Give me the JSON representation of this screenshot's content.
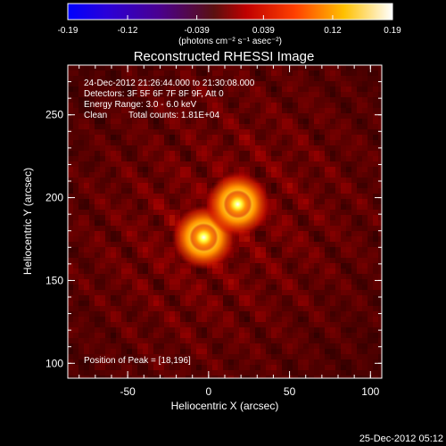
{
  "colorbar": {
    "ticks": [
      "-0.19",
      "-0.12",
      "-0.039",
      "0.039",
      "0.12",
      "0.19"
    ],
    "unit_label": "(photons cm⁻² s⁻¹ asec⁻²)",
    "range": [
      -0.19,
      0.19
    ]
  },
  "chart_data": {
    "type": "heatmap",
    "title": "Reconstructed RHESSI Image",
    "xlabel": "Heliocentric X (arcsec)",
    "ylabel": "Heliocentric Y (arcsec)",
    "xlim": [
      -87,
      107
    ],
    "ylim": [
      91,
      280
    ],
    "xticks": [
      "-50",
      "0",
      "50",
      "100"
    ],
    "yticks": [
      "100",
      "150",
      "200",
      "250"
    ],
    "sources": [
      {
        "x": -3,
        "y": 176,
        "peak": 0.19
      },
      {
        "x": 18,
        "y": 196,
        "peak": 0.19
      }
    ],
    "annotations": {
      "time_range": "24-Dec-2012 21:26:44.000 to 21:30:08.000",
      "detectors": "Detectors: 3F 5F 6F 7F 8F 9F, Att 0",
      "energy": "Energy Range: 3.0 - 6.0 keV",
      "method": "Clean",
      "counts": "Total counts: 1.81E+04",
      "peak_position": "Position of Peak = [18,196]"
    }
  },
  "footer": {
    "date": "25-Dec-2012 05:12"
  }
}
